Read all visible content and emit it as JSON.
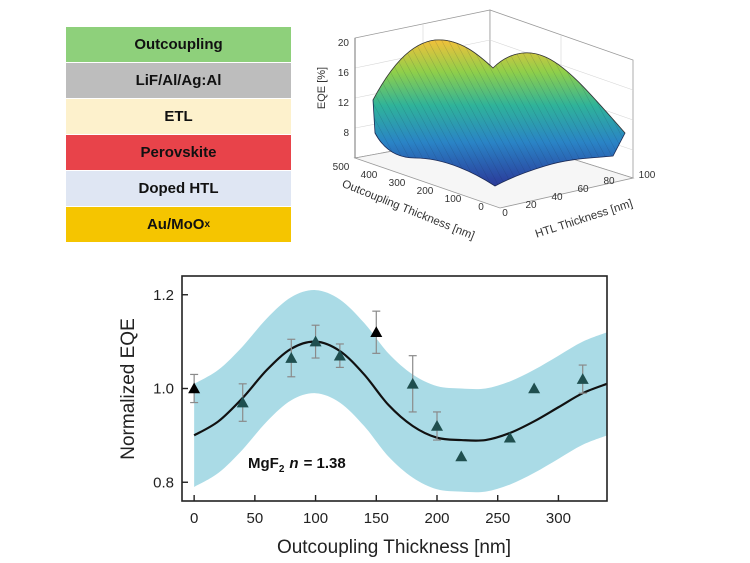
{
  "layer_stack": {
    "layers": [
      {
        "label": "Outcoupling",
        "color": "#8ed07b"
      },
      {
        "label": "LiF/Al/Ag:Al",
        "color": "#bdbdbd"
      },
      {
        "label": "ETL",
        "color": "#fdf1cc"
      },
      {
        "label": "Perovskite",
        "color": "#e8434a"
      },
      {
        "label": "Doped HTL",
        "color": "#dfe6f3"
      },
      {
        "label": "Au/MoO",
        "sub": "x",
        "color": "#f5c500"
      }
    ]
  },
  "surface_plot": {
    "zlabel": "EQE [%]",
    "xlabel": "Outcoupling Thickness [nm]",
    "ylabel": "HTL Thickness [nm]",
    "z_ticks": [
      "20",
      "16",
      "12",
      "8"
    ],
    "outcoupling_ticks": [
      "500",
      "400",
      "300",
      "200",
      "100",
      "0"
    ],
    "htl_ticks": [
      "0",
      "20",
      "40",
      "60",
      "80",
      "100"
    ]
  },
  "chart_data": {
    "type": "scatter",
    "title": "",
    "xlabel": "Outcoupling Thickness [nm]",
    "ylabel": "Normalized EQE",
    "xlim": [
      -10,
      340
    ],
    "ylim": [
      0.76,
      1.24
    ],
    "x_ticks": [
      0,
      50,
      100,
      150,
      200,
      250,
      300
    ],
    "y_ticks": [
      0.8,
      1.0,
      1.2
    ],
    "annotation": {
      "material": "MgF",
      "subscript": "2",
      "symbol": "n",
      "value": "= 1.38"
    },
    "points": [
      {
        "x": 0,
        "y": 1.0,
        "err": 0.03,
        "color": "#000000"
      },
      {
        "x": 40,
        "y": 0.97,
        "err": 0.04,
        "color": "#1f4f4f"
      },
      {
        "x": 80,
        "y": 1.065,
        "err": 0.04,
        "color": "#1f4f4f"
      },
      {
        "x": 100,
        "y": 1.1,
        "err": 0.035,
        "color": "#1f4f4f"
      },
      {
        "x": 120,
        "y": 1.07,
        "err": 0.025,
        "color": "#1f4f4f"
      },
      {
        "x": 150,
        "y": 1.12,
        "err": 0.045,
        "color": "#000000"
      },
      {
        "x": 180,
        "y": 1.01,
        "err": 0.06,
        "color": "#1f4f4f"
      },
      {
        "x": 200,
        "y": 0.92,
        "err": 0.03,
        "color": "#1f4f4f"
      },
      {
        "x": 220,
        "y": 0.855,
        "err": 0,
        "color": "#1f4f4f"
      },
      {
        "x": 260,
        "y": 0.895,
        "err": 0,
        "color": "#1f4f4f"
      },
      {
        "x": 280,
        "y": 1.0,
        "err": 0,
        "color": "#1f4f4f"
      },
      {
        "x": 320,
        "y": 1.02,
        "err": 0.03,
        "color": "#1f4f4f"
      }
    ],
    "fit_curve": {
      "x": [
        0,
        20,
        40,
        60,
        80,
        100,
        120,
        140,
        160,
        180,
        200,
        220,
        240,
        260,
        280,
        300,
        320,
        340
      ],
      "y": [
        0.9,
        0.93,
        0.98,
        1.04,
        1.085,
        1.1,
        1.08,
        1.03,
        0.965,
        0.92,
        0.895,
        0.89,
        0.89,
        0.905,
        0.93,
        0.96,
        0.99,
        1.01
      ]
    },
    "band_halfwidth": 0.11,
    "band_color": "#aadbe6"
  }
}
